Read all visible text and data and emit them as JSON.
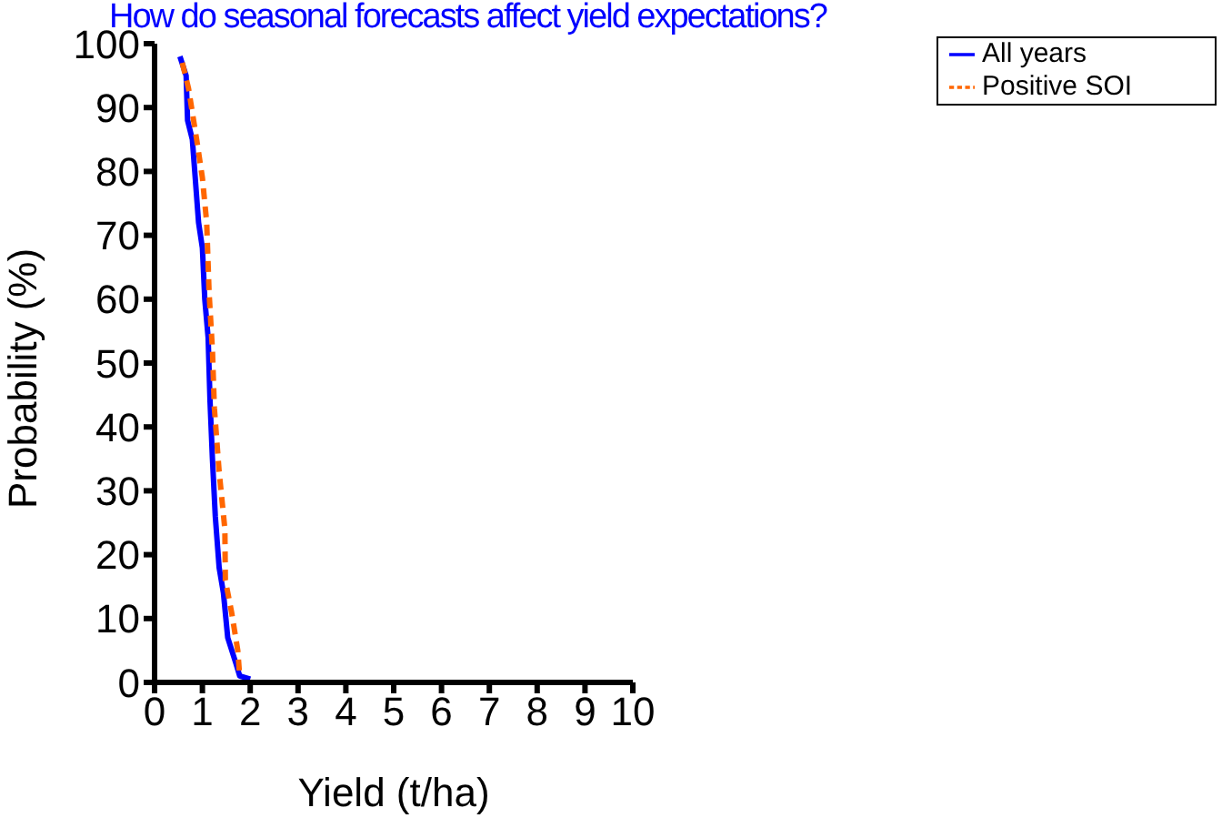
{
  "chart_data": {
    "type": "line",
    "title": "How do seasonal forecasts affect yield expectations?",
    "xlabel": "Yield (t/ha)",
    "ylabel": "Probability (%)",
    "xlim": [
      0,
      10
    ],
    "xticks": [
      0,
      1,
      2,
      3,
      4,
      5,
      6,
      7,
      8,
      9,
      10
    ],
    "ylim": [
      0,
      100
    ],
    "yticks": [
      0,
      10,
      20,
      30,
      40,
      50,
      60,
      70,
      80,
      90,
      100
    ],
    "grid": false,
    "legend": "top right",
    "marker": "none",
    "series": [
      {
        "name": "All years",
        "color": "#0000ff",
        "line_style": "solid",
        "x": [
          0.53,
          0.66,
          0.69,
          0.79,
          0.84,
          0.92,
          1.0,
          1.05,
          1.12,
          1.16,
          1.21,
          1.27,
          1.35,
          1.44,
          1.53,
          1.7,
          1.78,
          2.0
        ],
        "values": [
          98,
          95,
          88,
          85,
          80,
          72,
          68,
          60,
          54,
          44,
          35,
          26,
          18,
          14,
          7,
          3,
          1,
          0.5
        ]
      },
      {
        "name": "Positive SOI",
        "color": "#ff6600",
        "line_style": "dashed",
        "x": [
          0.58,
          0.71,
          0.88,
          1.0,
          1.09,
          1.14,
          1.21,
          1.25,
          1.35,
          1.47,
          1.48,
          1.61,
          1.74,
          1.78
        ],
        "values": [
          97,
          93,
          85,
          79,
          72,
          61,
          52,
          43,
          33,
          24,
          16,
          11,
          5,
          1
        ]
      }
    ]
  }
}
